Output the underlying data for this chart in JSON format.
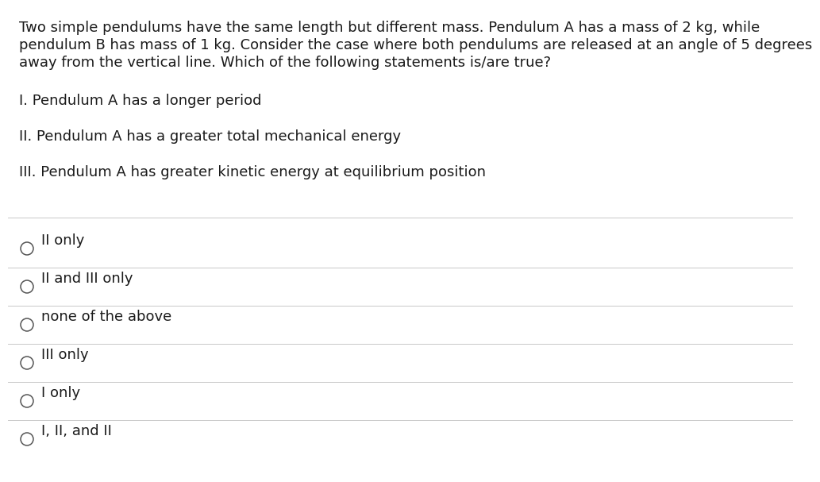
{
  "background_color": "#ffffff",
  "text_color": "#1a1a1a",
  "line1": "Two simple pendulums have the same length but different mass. Pendulum A has a mass of 2 kg, while",
  "line2": "pendulum B has mass of 1 kg. Consider the case where both pendulums are released at an angle of 5 degrees",
  "line3": "away from the vertical line. Which of the following statements is/are true?",
  "statements": [
    "I. Pendulum A has a longer period",
    "II. Pendulum A has a greater total mechanical energy",
    "III. Pendulum A has greater kinetic energy at equilibrium position"
  ],
  "choices": [
    "II only",
    "II and III only",
    "none of the above",
    "III only",
    "I only",
    "I, II, and II"
  ],
  "separator_color": "#c8c8c8",
  "font_size": 13.0,
  "circle_color": "#555555"
}
